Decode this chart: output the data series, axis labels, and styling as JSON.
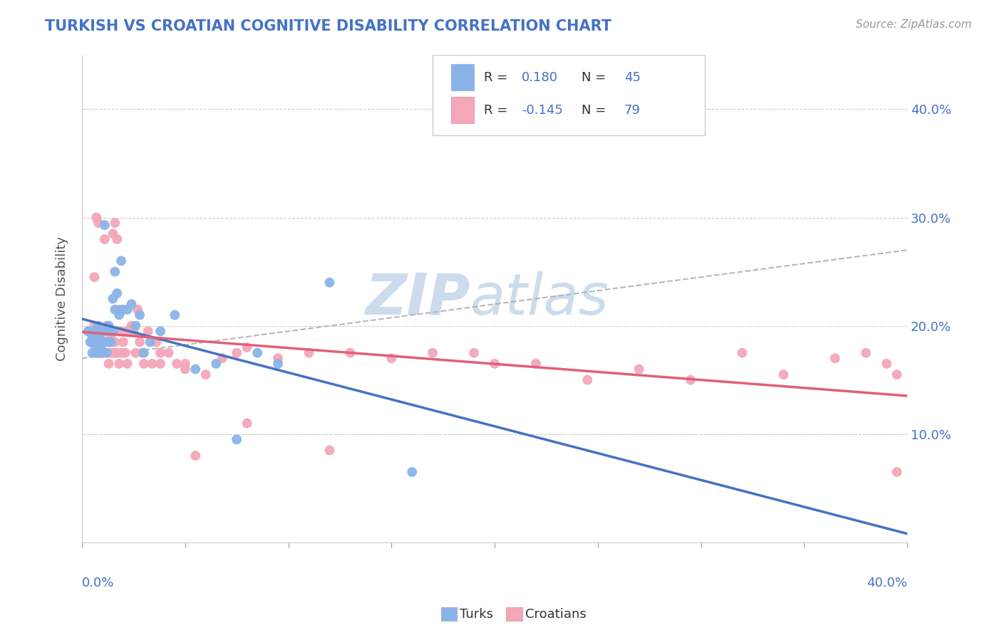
{
  "title": "TURKISH VS CROATIAN COGNITIVE DISABILITY CORRELATION CHART",
  "source": "Source: ZipAtlas.com",
  "ylabel": "Cognitive Disability",
  "xlim": [
    0.0,
    0.4
  ],
  "ylim": [
    0.0,
    0.45
  ],
  "turks_R": 0.18,
  "turks_N": 45,
  "croatians_R": -0.145,
  "croatians_N": 79,
  "turks_color": "#8ab4e8",
  "turks_line_color": "#4472c4",
  "croatians_color": "#f4a7b9",
  "croatians_line_color": "#e0607a",
  "background_color": "#ffffff",
  "watermark_color": "#ccdcec",
  "title_color": "#4472c4",
  "axis_label_color": "#4472c4",
  "turks_x": [
    0.003,
    0.004,
    0.005,
    0.005,
    0.006,
    0.006,
    0.007,
    0.007,
    0.008,
    0.008,
    0.008,
    0.009,
    0.009,
    0.01,
    0.01,
    0.011,
    0.011,
    0.012,
    0.012,
    0.013,
    0.013,
    0.014,
    0.015,
    0.015,
    0.016,
    0.016,
    0.017,
    0.018,
    0.019,
    0.02,
    0.022,
    0.024,
    0.026,
    0.028,
    0.03,
    0.033,
    0.038,
    0.045,
    0.055,
    0.065,
    0.075,
    0.085,
    0.095,
    0.12,
    0.16
  ],
  "turks_y": [
    0.195,
    0.185,
    0.19,
    0.175,
    0.195,
    0.183,
    0.175,
    0.19,
    0.185,
    0.2,
    0.175,
    0.188,
    0.18,
    0.195,
    0.175,
    0.185,
    0.293,
    0.175,
    0.195,
    0.185,
    0.2,
    0.185,
    0.225,
    0.195,
    0.25,
    0.215,
    0.23,
    0.21,
    0.26,
    0.215,
    0.215,
    0.22,
    0.2,
    0.21,
    0.175,
    0.185,
    0.195,
    0.21,
    0.16,
    0.165,
    0.095,
    0.175,
    0.165,
    0.24,
    0.065
  ],
  "croatians_x": [
    0.003,
    0.004,
    0.005,
    0.006,
    0.006,
    0.007,
    0.007,
    0.008,
    0.008,
    0.009,
    0.009,
    0.01,
    0.01,
    0.01,
    0.011,
    0.012,
    0.012,
    0.013,
    0.013,
    0.014,
    0.014,
    0.015,
    0.015,
    0.016,
    0.016,
    0.016,
    0.017,
    0.017,
    0.018,
    0.018,
    0.019,
    0.019,
    0.02,
    0.02,
    0.021,
    0.022,
    0.022,
    0.023,
    0.024,
    0.025,
    0.026,
    0.027,
    0.028,
    0.029,
    0.03,
    0.032,
    0.034,
    0.036,
    0.038,
    0.042,
    0.046,
    0.05,
    0.055,
    0.06,
    0.068,
    0.08,
    0.095,
    0.11,
    0.13,
    0.15,
    0.17,
    0.19,
    0.22,
    0.245,
    0.27,
    0.295,
    0.32,
    0.34,
    0.365,
    0.38,
    0.39,
    0.395,
    0.038,
    0.075,
    0.12,
    0.05,
    0.08,
    0.2,
    0.395
  ],
  "croatians_y": [
    0.195,
    0.195,
    0.185,
    0.245,
    0.2,
    0.175,
    0.3,
    0.175,
    0.295,
    0.195,
    0.175,
    0.185,
    0.175,
    0.195,
    0.28,
    0.175,
    0.2,
    0.165,
    0.195,
    0.175,
    0.19,
    0.285,
    0.175,
    0.175,
    0.185,
    0.295,
    0.175,
    0.28,
    0.165,
    0.215,
    0.175,
    0.195,
    0.185,
    0.215,
    0.175,
    0.195,
    0.165,
    0.195,
    0.2,
    0.195,
    0.175,
    0.215,
    0.185,
    0.175,
    0.165,
    0.195,
    0.165,
    0.185,
    0.165,
    0.175,
    0.165,
    0.16,
    0.08,
    0.155,
    0.17,
    0.18,
    0.17,
    0.175,
    0.175,
    0.17,
    0.175,
    0.175,
    0.165,
    0.15,
    0.16,
    0.15,
    0.175,
    0.155,
    0.17,
    0.175,
    0.165,
    0.155,
    0.175,
    0.175,
    0.085,
    0.165,
    0.11,
    0.165,
    0.065
  ]
}
